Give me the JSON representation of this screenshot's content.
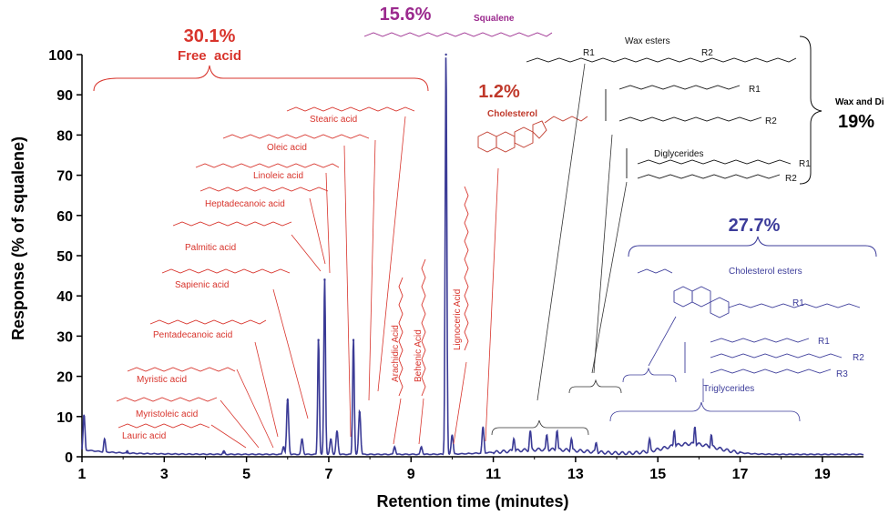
{
  "chart_data": {
    "type": "line",
    "xlabel": "Retention time (minutes)",
    "ylabel": "Response (% of squalene)",
    "xlim": [
      1,
      20
    ],
    "ylim": [
      0,
      100
    ],
    "xticks": [
      1,
      3,
      5,
      7,
      9,
      11,
      13,
      15,
      17,
      19
    ],
    "yticks": [
      0,
      10,
      20,
      30,
      40,
      50,
      60,
      70,
      80,
      90,
      100
    ],
    "series_color": "#3b3b96",
    "peaks": [
      {
        "x": 1.05,
        "y": 10
      },
      {
        "x": 1.55,
        "y": 4
      },
      {
        "x": 2.1,
        "y": 1
      },
      {
        "x": 4.45,
        "y": 1
      },
      {
        "x": 5.9,
        "y": 2
      },
      {
        "x": 6.0,
        "y": 14
      },
      {
        "x": 6.35,
        "y": 4
      },
      {
        "x": 6.75,
        "y": 29
      },
      {
        "x": 6.9,
        "y": 44
      },
      {
        "x": 7.05,
        "y": 4
      },
      {
        "x": 7.2,
        "y": 6
      },
      {
        "x": 7.6,
        "y": 29
      },
      {
        "x": 7.75,
        "y": 11
      },
      {
        "x": 8.6,
        "y": 2
      },
      {
        "x": 9.25,
        "y": 2
      },
      {
        "x": 9.85,
        "y": 100
      },
      {
        "x": 10.0,
        "y": 5
      },
      {
        "x": 10.75,
        "y": 7
      },
      {
        "x": 11.5,
        "y": 4
      },
      {
        "x": 11.9,
        "y": 6
      },
      {
        "x": 12.3,
        "y": 5
      },
      {
        "x": 12.55,
        "y": 6
      },
      {
        "x": 12.9,
        "y": 4
      },
      {
        "x": 13.5,
        "y": 3
      },
      {
        "x": 14.8,
        "y": 4
      },
      {
        "x": 15.4,
        "y": 6
      },
      {
        "x": 15.9,
        "y": 7
      },
      {
        "x": 16.3,
        "y": 5
      }
    ],
    "annotations": [
      {
        "text": "Lauric acid",
        "color": "red"
      },
      {
        "text": "Myristoleic acid",
        "color": "red"
      },
      {
        "text": "Myristic acid",
        "color": "red"
      },
      {
        "text": "Pentadecanoic acid",
        "color": "red"
      },
      {
        "text": "Sapienic acid",
        "color": "red"
      },
      {
        "text": "Palmitic acid",
        "color": "red"
      },
      {
        "text": "Heptadecanoic acid",
        "color": "red"
      },
      {
        "text": "Linoleic acid",
        "color": "red"
      },
      {
        "text": "Oleic acid",
        "color": "red"
      },
      {
        "text": "Stearic acid",
        "color": "red"
      },
      {
        "text": "Arachidic Acid",
        "color": "red"
      },
      {
        "text": "Behenic Acid",
        "color": "red"
      },
      {
        "text": "Lignoceric Acid",
        "color": "red"
      },
      {
        "text": "Cholesterol",
        "color": "red"
      },
      {
        "text": "Squalene",
        "color": "purple"
      },
      {
        "text": "Wax esters",
        "color": "black"
      },
      {
        "text": "Diglycerides",
        "color": "black"
      },
      {
        "text": "Cholesterol esters",
        "color": "blue"
      },
      {
        "text": "Triglycerides",
        "color": "blue"
      }
    ],
    "groups": [
      {
        "percent": "30.1%",
        "name": "Free  acid",
        "color": "#d8342c"
      },
      {
        "percent": "15.6%",
        "name": "Squalene",
        "color": "#9b2a8e"
      },
      {
        "percent": "1.2%",
        "name": "Cholesterol",
        "color": "#c0392b"
      },
      {
        "percent": "19%",
        "name": "Wax and Di",
        "color": "#000000"
      },
      {
        "percent": "27.7%",
        "name": "Cholesterol esters",
        "color": "#3c3c9a"
      }
    ],
    "structure_labels": [
      "R1",
      "R2",
      "R3",
      "HO",
      "OH",
      "O"
    ]
  }
}
